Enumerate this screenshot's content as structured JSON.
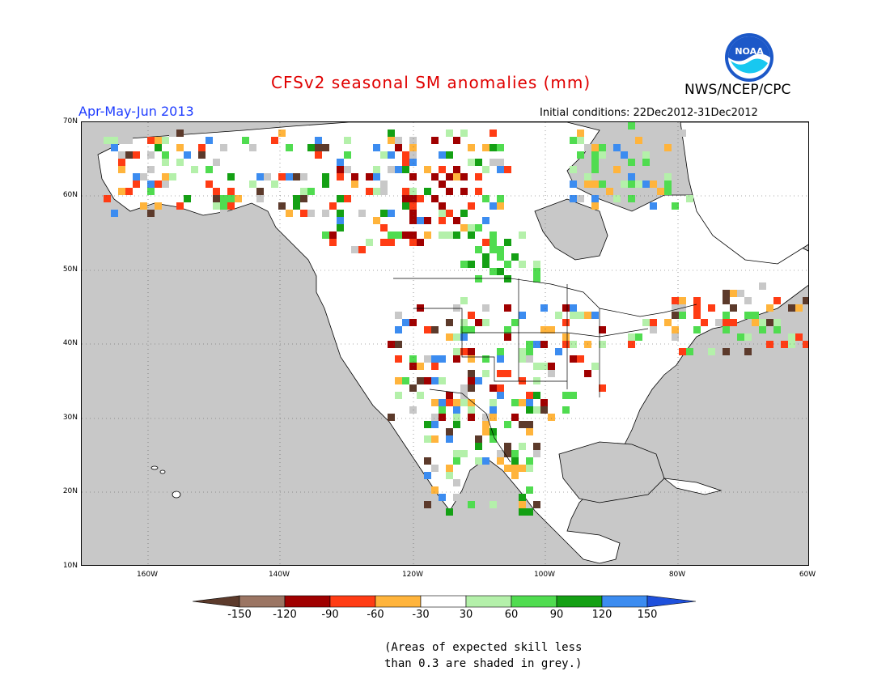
{
  "title": "CFSv2 seasonal SM anomalies (mm)",
  "org": "NWS/NCEP/CPC",
  "logo_text": "NOAA",
  "season": "Apr-May-Jun 2013",
  "initial_conditions": "Initial conditions: 22Dec2012-31Dec2012",
  "lat_ticks": [
    "70N",
    "60N",
    "50N",
    "40N",
    "30N",
    "20N",
    "10N"
  ],
  "lon_ticks": [
    "160W",
    "140W",
    "120W",
    "100W",
    "80W",
    "60W"
  ],
  "colorbar": {
    "labels": [
      "-150",
      "-120",
      "-90",
      "-60",
      "-30",
      "30",
      "60",
      "90",
      "120",
      "150"
    ],
    "colors": [
      "#5c3a2b",
      "#9b7563",
      "#a00000",
      "#ff3c14",
      "#ffb43c",
      "#ffffff",
      "#b4f0aa",
      "#50dc50",
      "#14a014",
      "#3c8cf0",
      "#1e50dc"
    ]
  },
  "note_line1": "(Areas of expected skill less",
  "note_line2": "than 0.3 are shaded in grey.)",
  "colors": {
    "ocean": "#c8c8c8",
    "land": "#ffffff",
    "grey_skill": "#c8c8c8",
    "title": "#e00000",
    "season": "#1e3cff"
  }
}
